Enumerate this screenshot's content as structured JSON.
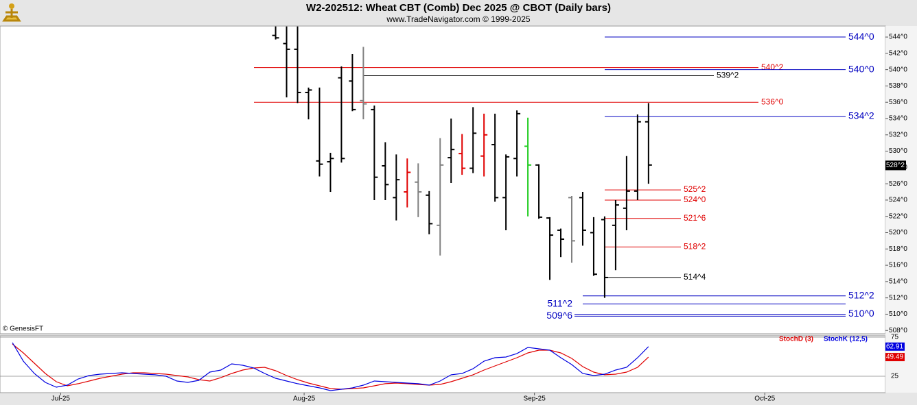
{
  "chart_data": [
    {
      "type": "ohlc",
      "title": "W2-202512:  Wheat CBT (Comb) Dec 2025 @ CBOT  (Daily bars)",
      "subtitle": "www.TradeNavigator.com © 1999-2025",
      "annotation": "© GenesisFT",
      "x": [
        24,
        25,
        26,
        27,
        28,
        29,
        30,
        31,
        32,
        33,
        34,
        35,
        36,
        37,
        38,
        39,
        40,
        41,
        42,
        43,
        44,
        45,
        46,
        47,
        48,
        49,
        50,
        51,
        52,
        53,
        54,
        55,
        56,
        57,
        58
      ],
      "open": [
        544.2,
        543.2,
        542.5,
        537.2,
        528.8,
        528.7,
        539.0,
        538.6,
        536.2,
        535.1,
        528.2,
        524.3,
        525.0,
        526.2,
        524.6,
        520.9,
        529.2,
        529.7,
        527.9,
        529.4,
        530.8,
        524.3,
        529.1,
        530.6,
        528.3,
        521.8,
        520.3,
        524.3,
        524.3,
        520.0,
        521.6,
        520.9,
        523.0,
        525.1,
        533.6
      ],
      "high": [
        545.3,
        545.3,
        545.3,
        537.8,
        537.8,
        529.8,
        540.4,
        541.9,
        542.8,
        535.6,
        531.1,
        529.6,
        529.1,
        528.5,
        525.1,
        531.6,
        534.0,
        532.1,
        535.4,
        534.6,
        534.6,
        529.6,
        535.0,
        534.1,
        528.4,
        521.9,
        520.5,
        524.5,
        525.0,
        521.9,
        522.0,
        524.0,
        529.4,
        534.5,
        535.9
      ],
      "low": [
        543.7,
        536.6,
        535.9,
        533.9,
        526.9,
        525.0,
        528.6,
        534.9,
        533.9,
        524.0,
        524.0,
        521.5,
        523.1,
        521.9,
        519.8,
        517.2,
        526.1,
        527.1,
        527.3,
        526.9,
        523.8,
        520.3,
        526.9,
        522.0,
        521.7,
        514.2,
        517.0,
        516.3,
        518.4,
        514.7,
        512.0,
        515.4,
        520.3,
        524.0,
        526.0
      ],
      "close": [
        543.9,
        542.5,
        537.2,
        537.5,
        528.4,
        529.1,
        529.1,
        535.1,
        535.8,
        526.8,
        525.9,
        526.5,
        527.4,
        525.0,
        521.1,
        528.3,
        530.2,
        527.9,
        532.2,
        532.0,
        524.3,
        529.3,
        534.6,
        528.3,
        521.9,
        519.7,
        519.2,
        519.0,
        520.3,
        514.9,
        514.5,
        523.4,
        525.1,
        533.6,
        528.3
      ],
      "colors": [
        "#000000",
        "#000000",
        "#000000",
        "#000000",
        "#000000",
        "#000000",
        "#000000",
        "#000000",
        "#808080",
        "#000000",
        "#000000",
        "#000000",
        "#e00000",
        "#808080",
        "#000000",
        "#808080",
        "#000000",
        "#e00000",
        "#000000",
        "#e00000",
        "#000000",
        "#000000",
        "#000000",
        "#22cc22",
        "#000000",
        "#000000",
        "#000000",
        "#808080",
        "#000000",
        "#000000",
        "#000000",
        "#000000",
        "#000000",
        "#000000",
        "#000000"
      ],
      "xlim": [
        -1.13,
        79.6
      ],
      "ylim": [
        507.6,
        545.35
      ],
      "yticks": [
        {
          "value": 508,
          "label": "508^0"
        },
        {
          "value": 510,
          "label": "510^0"
        },
        {
          "value": 512,
          "label": "512^0"
        },
        {
          "value": 514,
          "label": "514^0"
        },
        {
          "value": 516,
          "label": "516^0"
        },
        {
          "value": 518,
          "label": "518^0"
        },
        {
          "value": 520,
          "label": "520^0"
        },
        {
          "value": 522,
          "label": "522^0"
        },
        {
          "value": 524,
          "label": "524^0"
        },
        {
          "value": 526,
          "label": "526^0"
        },
        {
          "value": 528,
          "label": "528^0"
        },
        {
          "value": 530,
          "label": "530^0"
        },
        {
          "value": 532,
          "label": "532^0"
        },
        {
          "value": 534,
          "label": "534^0"
        },
        {
          "value": 536,
          "label": "536^0"
        },
        {
          "value": 538,
          "label": "538^0"
        },
        {
          "value": 540,
          "label": "540^0"
        },
        {
          "value": 542,
          "label": "542^0"
        },
        {
          "value": 544,
          "label": "544^0"
        }
      ],
      "levels": [
        {
          "value": 544,
          "label": "544^0",
          "color": "#0000c0"
        },
        {
          "value": 540.25,
          "label": "540^2",
          "color": "#e00000"
        },
        {
          "value": 540,
          "label": "540^0",
          "color": "#0000c0"
        },
        {
          "value": 539.25,
          "label": "539^2",
          "color": "#000000"
        },
        {
          "value": 536,
          "label": "536^0",
          "color": "#e00000"
        },
        {
          "value": 534.25,
          "label": "534^2",
          "color": "#0000c0"
        },
        {
          "value": 525.25,
          "label": "525^2",
          "color": "#e00000"
        },
        {
          "value": 524,
          "label": "524^0",
          "color": "#e00000"
        },
        {
          "value": 521.75,
          "label": "521^6",
          "color": "#e00000"
        },
        {
          "value": 518.25,
          "label": "518^2",
          "color": "#e00000"
        },
        {
          "value": 514.5,
          "label": "514^4",
          "color": "#000000"
        },
        {
          "value": 512.25,
          "label": "512^2",
          "color": "#0000c0"
        },
        {
          "value": 511.25,
          "label": "511^2",
          "color": "#0000c0"
        },
        {
          "value": 509.75,
          "label": "509^6",
          "color": "#0000c0"
        },
        {
          "value": 510,
          "label": "510^0",
          "color": "#0000c0"
        }
      ],
      "last_price": {
        "value": 528.25,
        "label": "528^2"
      }
    },
    {
      "type": "line",
      "x": [
        0,
        1,
        2,
        3,
        4,
        5,
        6,
        7,
        8,
        9,
        10,
        11,
        12,
        13,
        14,
        15,
        16,
        17,
        18,
        19,
        20,
        21,
        22,
        23,
        24,
        25,
        26,
        27,
        28,
        29,
        30,
        31,
        32,
        33,
        34,
        35,
        36,
        37,
        38,
        39,
        40,
        41,
        42,
        43,
        44,
        45,
        46,
        47,
        48,
        49,
        50,
        51,
        52,
        53,
        54,
        55,
        56,
        57,
        58
      ],
      "series": [
        {
          "name": "StochD (3)",
          "color": "#e00000",
          "values": [
            66.2,
            54.8,
            41.7,
            28.5,
            18.0,
            12.7,
            15.4,
            18.9,
            22.4,
            25.0,
            27.6,
            29.4,
            29.4,
            28.5,
            27.6,
            25.9,
            24.1,
            20.6,
            18.9,
            23.2,
            28.5,
            32.9,
            35.5,
            36.4,
            32.0,
            25.9,
            20.6,
            16.2,
            12.7,
            9.2,
            8.3,
            9.2,
            10.1,
            12.7,
            15.4,
            16.2,
            15.4,
            14.5,
            13.6,
            14.5,
            18.0,
            22.4,
            26.8,
            32.9,
            38.2,
            43.4,
            48.7,
            54.8,
            58.3,
            58.3,
            54.8,
            47.8,
            37.3,
            30.3,
            26.8,
            27.6,
            30.3,
            36.4,
            49.49
          ]
        },
        {
          "name": "StochK (12,5)",
          "color": "#0000e0",
          "values": [
            68.0,
            44.3,
            28.5,
            17.1,
            11.0,
            13.6,
            21.5,
            25.9,
            27.6,
            28.5,
            29.4,
            28.5,
            27.6,
            26.8,
            25.0,
            18.9,
            17.1,
            19.7,
            30.3,
            32.9,
            40.8,
            39.0,
            35.5,
            28.5,
            22.4,
            18.9,
            15.4,
            12.7,
            10.1,
            6.6,
            8.3,
            10.1,
            13.6,
            18.9,
            18.0,
            17.1,
            16.2,
            15.4,
            13.6,
            18.9,
            26.8,
            28.5,
            34.6,
            44.3,
            48.7,
            49.6,
            54.0,
            61.8,
            60.1,
            58.3,
            48.7,
            39.9,
            28.5,
            25.9,
            27.6,
            32.9,
            36.4,
            48.7,
            62.91
          ]
        }
      ],
      "xlim": [
        -1.13,
        79.6
      ],
      "ylim": [
        3.95,
        76.75
      ],
      "yticks": [
        25,
        75
      ],
      "xticks": [
        {
          "value": 4.4,
          "label": "Jul-25"
        },
        {
          "value": 26.6,
          "label": "Aug-25"
        },
        {
          "value": 47.6,
          "label": "Sep-25"
        },
        {
          "value": 68.6,
          "label": "Oct-25"
        }
      ]
    }
  ]
}
